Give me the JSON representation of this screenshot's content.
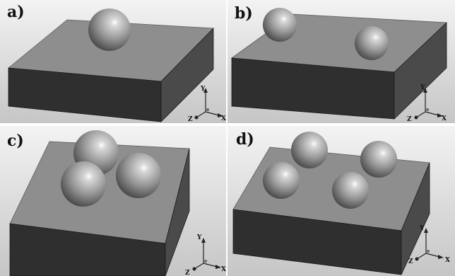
{
  "panels": [
    {
      "label": "a)",
      "sphere_count": 1
    },
    {
      "label": "b)",
      "sphere_count": 2
    },
    {
      "label": "c)",
      "sphere_count": 3
    },
    {
      "label": "d)",
      "sphere_count": 4
    }
  ],
  "axes": {
    "x": "X",
    "y": "Y",
    "z": "Z"
  },
  "colors": {
    "background_top": "#f2f2f2",
    "background_bottom": "#c4c4c4",
    "block_top": "#8f8f8f",
    "block_front": "#2f2f2f",
    "block_side": "#4a4a4a",
    "sphere_highlight": "#ffffff",
    "sphere_mid": "#9a9a9a",
    "sphere_shadow": "#3e3e3e"
  }
}
